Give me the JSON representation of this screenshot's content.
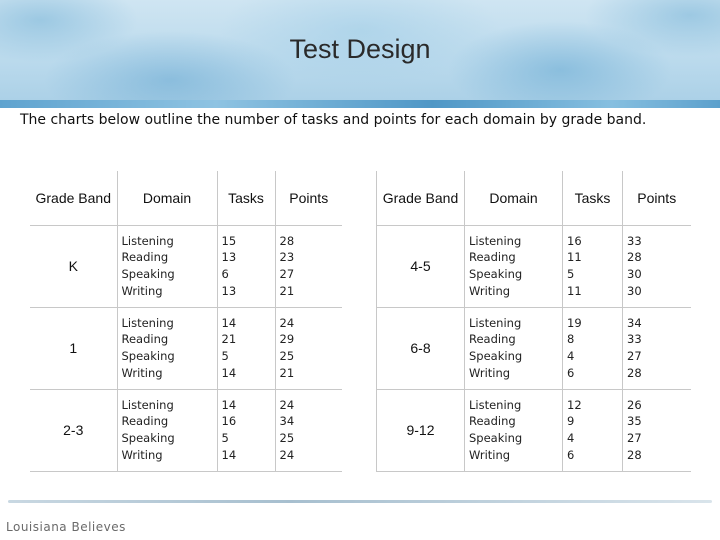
{
  "slide": {
    "title": "Test Design",
    "subtitle": "The charts below outline the number of tasks and points for each domain by grade band.",
    "brand": "Louisiana Believes"
  },
  "tables": [
    {
      "headers": {
        "band": "Grade Band",
        "domain": "Domain",
        "tasks": "Tasks",
        "points": "Points"
      },
      "rows": [
        {
          "band": "K",
          "domains": [
            "Listening",
            "Reading",
            "Speaking",
            "Writing"
          ],
          "tasks": [
            "15",
            "13",
            "6",
            "13"
          ],
          "points": [
            "28",
            "23",
            "27",
            "21"
          ]
        },
        {
          "band": "1",
          "domains": [
            "Listening",
            "Reading",
            "Speaking",
            "Writing"
          ],
          "tasks": [
            "14",
            "21",
            "5",
            "14"
          ],
          "points": [
            "24",
            "29",
            "25",
            "21"
          ]
        },
        {
          "band": "2-3",
          "domains": [
            "Listening",
            "Reading",
            "Speaking",
            "Writing"
          ],
          "tasks": [
            "14",
            "16",
            "5",
            "14"
          ],
          "points": [
            "24",
            "34",
            "25",
            "24"
          ]
        }
      ]
    },
    {
      "headers": {
        "band": "Grade Band",
        "domain": "Domain",
        "tasks": "Tasks",
        "points": "Points"
      },
      "rows": [
        {
          "band": "4-5",
          "domains": [
            "Listening",
            "Reading",
            "Speaking",
            "Writing"
          ],
          "tasks": [
            "16",
            "11",
            "5",
            "11"
          ],
          "points": [
            "33",
            "28",
            "30",
            "30"
          ]
        },
        {
          "band": "6-8",
          "domains": [
            "Listening",
            "Reading",
            "Speaking",
            "Writing"
          ],
          "tasks": [
            "19",
            "8",
            "4",
            "6"
          ],
          "points": [
            "34",
            "33",
            "27",
            "28"
          ]
        },
        {
          "band": "9-12",
          "domains": [
            "Listening",
            "Reading",
            "Speaking",
            "Writing"
          ],
          "tasks": [
            "12",
            "9",
            "4",
            "6"
          ],
          "points": [
            "26",
            "35",
            "27",
            "28"
          ]
        }
      ]
    }
  ]
}
